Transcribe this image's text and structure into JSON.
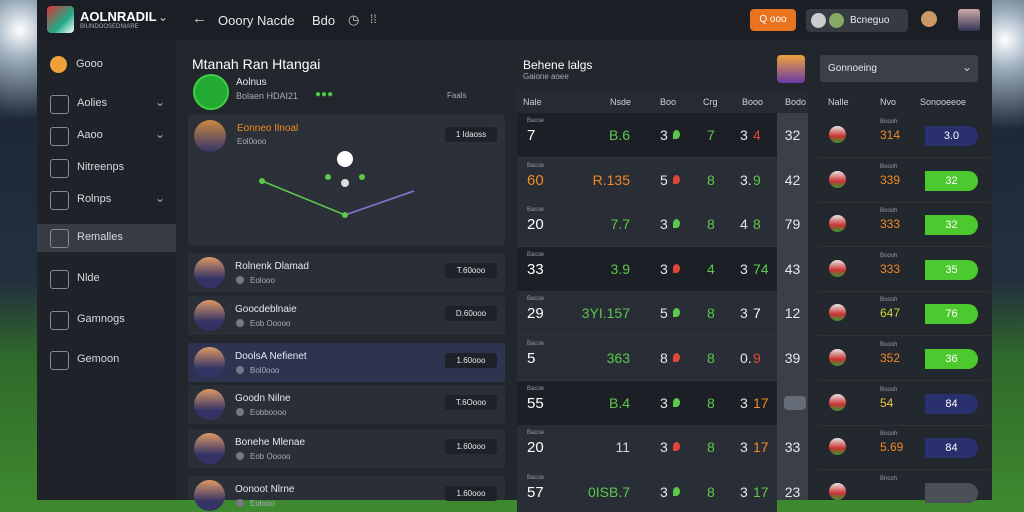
{
  "app": {
    "brand": "AOLNRADIL",
    "brand_sub": "BIUNDOOSEDNIARE"
  },
  "topbar": {
    "page": "Ooory Nacde",
    "tab": "Bdo",
    "action": "Q ooo",
    "user": "Bcneguo"
  },
  "sidebar": {
    "active": 5,
    "items": [
      {
        "label": "Gooo"
      },
      {
        "label": "Aolies",
        "chevron": true
      },
      {
        "label": "Aaoo",
        "chevron": true
      },
      {
        "label": "Nitreenps"
      },
      {
        "label": "Rolnps",
        "chevron": true
      },
      {
        "label": "Remalles"
      },
      {
        "label": "Nlde"
      },
      {
        "label": "Gamnogs"
      },
      {
        "label": "Gemoon"
      }
    ]
  },
  "feed": {
    "title": "Mtanah Ran Htangai",
    "profile": {
      "name": "Aolnus",
      "sub": "Bolaen HDAI21",
      "meta": "Faals"
    },
    "card": {
      "name": "Eonneo Ilnoal",
      "sub": "Eol0ooo",
      "tag": "1 Idaoss"
    },
    "active": 2,
    "items": [
      {
        "name": "Rolnenk Dlamad",
        "sub": "Eolooo",
        "tag": "T.60ooo"
      },
      {
        "name": "Goocdeblnaie",
        "sub": "Eob Ooooo",
        "tag": "D.60ooo"
      },
      {
        "name": "DoolsA Nefienet",
        "sub": "Bol0ooo",
        "tag": "1.60ooo"
      },
      {
        "name": "Goodn Nilne",
        "sub": "Eobboooo",
        "tag": "T.6Oooo"
      },
      {
        "name": "Bonehe Mlenae",
        "sub": "Eob Ooooo",
        "tag": "1.60ooo"
      },
      {
        "name": "Oonoot Nlrne",
        "sub": "Eolooo",
        "tag": "1.60ooo"
      }
    ]
  },
  "table": {
    "title": "Behene lalgs",
    "subtitle": "Gaione aoee",
    "columns": [
      "Nale",
      "Nsde",
      "Boo",
      "Crg",
      "Booo",
      "Bodo"
    ],
    "rows": [
      {
        "label": "Bacoe",
        "main": "7",
        "value": "B.6",
        "value_color": "#5cc94a",
        "n1": "3",
        "n2": "7",
        "n3": "3",
        "n4": "4",
        "n4_color": "#e0453a",
        "last": "32"
      },
      {
        "label": "Bacoe",
        "main": "60",
        "main_color": "#f08a24",
        "value": "R.135",
        "value_color": "#f08a24",
        "n1": "5",
        "n2": "8",
        "n3": "3.",
        "n4": "9",
        "n4_color": "#5cc94a",
        "last": "42"
      },
      {
        "label": "Bacoe",
        "main": "20",
        "value": "7.7",
        "value_color": "#5cc94a",
        "n1": "3",
        "n2": "8",
        "n3": "4",
        "n4": "8",
        "n4_color": "#5cc94a",
        "last": "79"
      },
      {
        "label": "Bacoe",
        "main": "33",
        "value": "3.9",
        "value_color": "#5cc94a",
        "n1": "3",
        "n2": "4",
        "n3": "3",
        "n4": "74",
        "n4_color": "#5cc94a",
        "last": "43"
      },
      {
        "label": "Bacoe",
        "main": "29",
        "value": "3YI.157",
        "value_color": "#5cc94a",
        "n1": "5",
        "n2": "8",
        "n3": "3",
        "n4": "7",
        "last": "12"
      },
      {
        "label": "Bacoe",
        "main": "5",
        "value": "363",
        "value_color": "#5cc94a",
        "n1": "8",
        "n2": "8",
        "n3": "0.",
        "n4": "9",
        "n4_color": "#e0453a",
        "last": "39"
      },
      {
        "label": "Bacoe",
        "main": "55",
        "value": "B.4",
        "value_color": "#5cc94a",
        "n1": "3",
        "n2": "8",
        "n3": "3",
        "n4": "17",
        "n4_color": "#f08a24"
      },
      {
        "label": "Bacoe",
        "main": "20",
        "value": "11",
        "value_color": "#cfd3da",
        "n1": "3",
        "n2": "8",
        "n3": "3",
        "n4": "17",
        "n4_color": "#f08a24",
        "last": "33"
      },
      {
        "label": "Bacoe",
        "main": "57",
        "value": "0ISB.7",
        "value_color": "#5cc94a",
        "n1": "3",
        "n2": "8",
        "n3": "3",
        "n4": "17",
        "n4_color": "#5cc94a",
        "last": "23"
      }
    ]
  },
  "side_table": {
    "dropdown": "Gonnoeing",
    "columns": [
      "Nalle",
      "Nvo",
      "Sonooeeoe"
    ],
    "rows": [
      {
        "label": "Boooh",
        "num": "314",
        "pill": "3.0",
        "pill_color": "#2a2f6e"
      },
      {
        "label": "Boooh",
        "num": "339",
        "pill": "32",
        "pill_color": "#4cc92e"
      },
      {
        "label": "Boooh",
        "num": "333",
        "pill": "32",
        "pill_color": "#4cc92e"
      },
      {
        "label": "Boooh",
        "num": "333",
        "pill": "35",
        "pill_color": "#4cc92e"
      },
      {
        "label": "Boooh",
        "num": "647",
        "num_color": "#c8d43a",
        "pill": "76",
        "pill_color": "#4cc92e"
      },
      {
        "label": "Boooh",
        "num": "352",
        "pill": "36",
        "pill_color": "#4cc92e"
      },
      {
        "label": "Boooh",
        "num": "54",
        "num_color": "#e8c43a",
        "pill": "84",
        "pill_color": "#2a2f6e"
      },
      {
        "label": "Boooh",
        "num": "5.69",
        "pill": "84",
        "pill_color": "#2a2f6e"
      },
      {
        "label": "Bncoh",
        "pill_color": "#4a4f58"
      }
    ]
  }
}
